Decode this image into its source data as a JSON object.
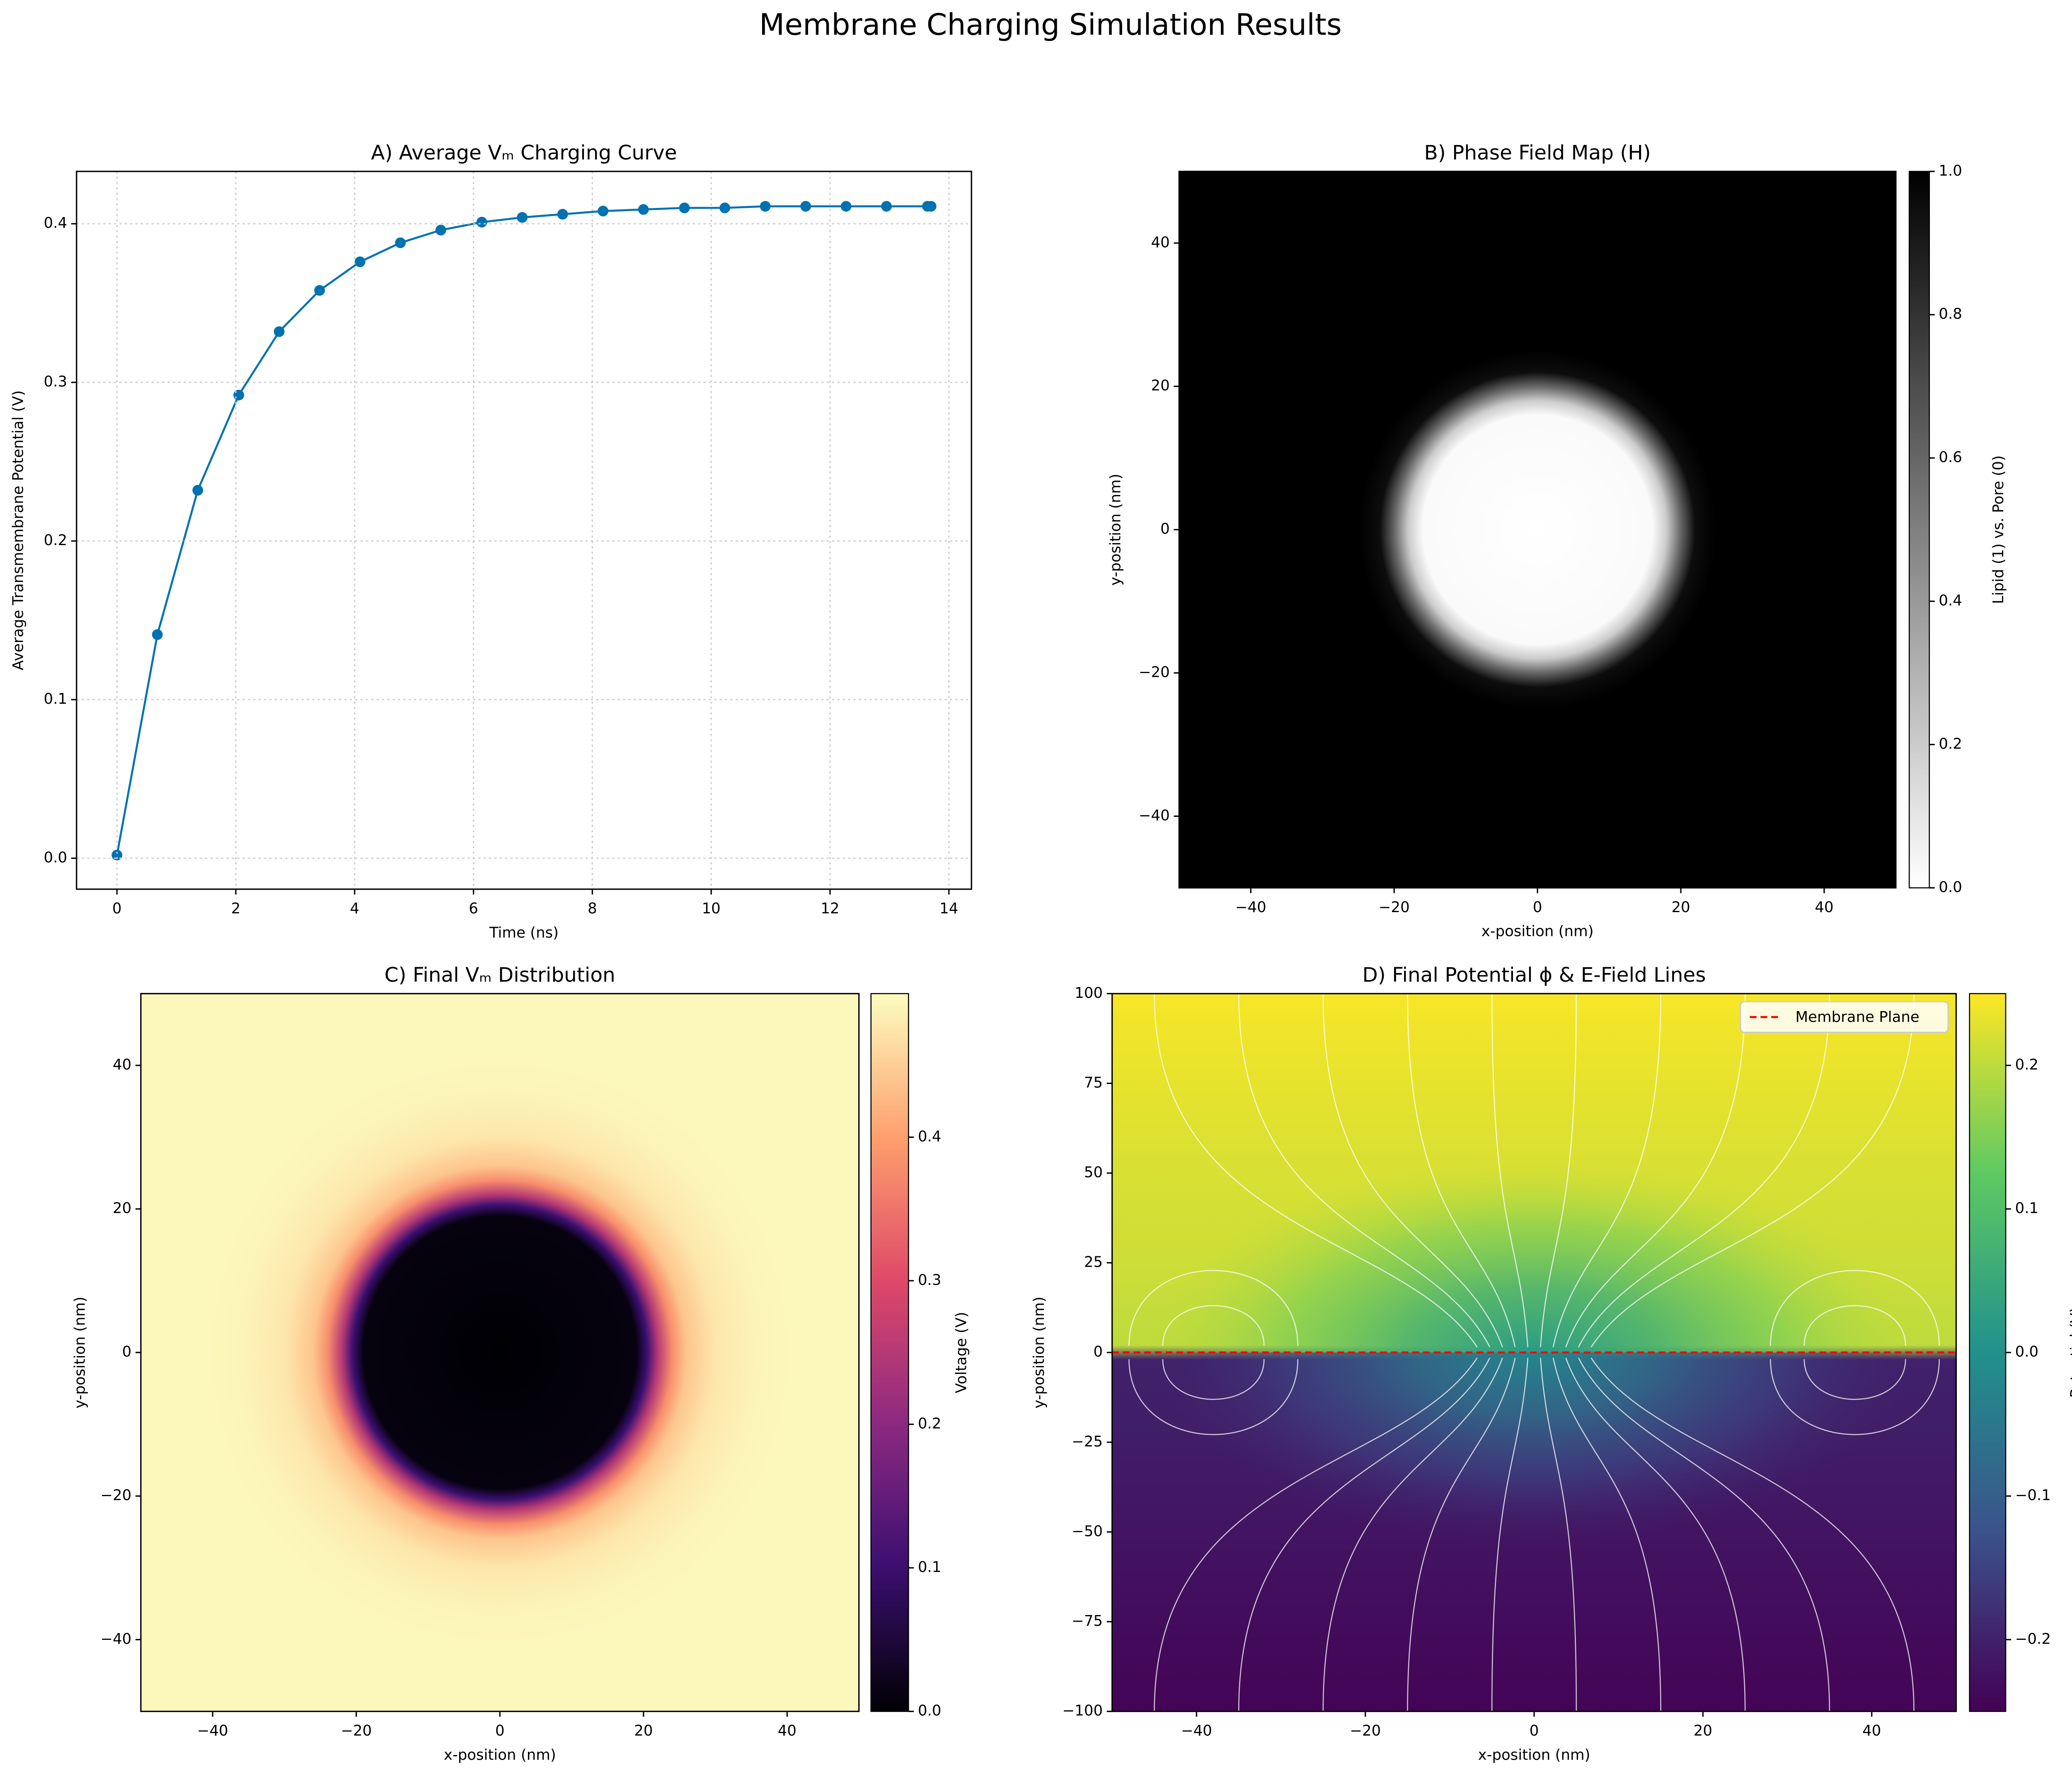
{
  "title": "Membrane Charging Simulation Results",
  "chart_data": [
    {
      "type": "line",
      "title": "A) Average Vₘ Charging Curve",
      "xlabel": "Time (ns)",
      "ylabel": "Average Transmembrane Potential (V)",
      "x": [
        0,
        0.68,
        1.36,
        2.05,
        2.73,
        3.41,
        4.09,
        4.77,
        5.45,
        6.14,
        6.82,
        7.5,
        8.18,
        8.86,
        9.55,
        10.23,
        10.91,
        11.59,
        12.27,
        12.95,
        13.64,
        13.7
      ],
      "values": [
        0.002,
        0.141,
        0.232,
        0.292,
        0.332,
        0.358,
        0.376,
        0.388,
        0.396,
        0.401,
        0.404,
        0.406,
        0.408,
        0.409,
        0.41,
        0.41,
        0.411,
        0.411,
        0.411,
        0.411,
        0.411,
        0.411
      ],
      "color": "#0072b2",
      "grid": true,
      "xlim": [
        -0.68,
        14.38
      ],
      "xticks": [
        0,
        2,
        4,
        6,
        8,
        10,
        12,
        14
      ],
      "ylim": [
        -0.0195,
        0.433
      ],
      "yticks": [
        {
          "value": 0,
          "label": "0.0"
        },
        0.1,
        0.2,
        0.3,
        0.4
      ]
    },
    {
      "type": "heatmap",
      "title": "B) Phase Field Map (H)",
      "xlabel": "x-position (nm)",
      "ylabel": "y-position (nm)",
      "xlim": [
        -50,
        50
      ],
      "xticks": [
        {
          "value": -40,
          "label": "−40"
        },
        {
          "value": -20,
          "label": "−20"
        },
        0,
        20,
        40
      ],
      "ylim": [
        -50,
        50
      ],
      "yticks": [
        {
          "value": -40,
          "label": "−40"
        },
        {
          "value": -20,
          "label": "−20"
        },
        0,
        20,
        40
      ],
      "cmap": "gray_r",
      "clim": [
        0,
        1
      ],
      "colorbar": {
        "label": "Lipid (1) vs. Pore (0)",
        "ticks": [
          {
            "value": 0,
            "label": "0.0"
          },
          0.2,
          0.4,
          0.6,
          0.8,
          {
            "value": 1,
            "label": "1.0"
          }
        ]
      },
      "radial_profile": {
        "r": [
          0,
          16,
          18,
          20,
          22,
          25
        ],
        "values": [
          0,
          0.02,
          0.2,
          0.6,
          0.95,
          1
        ]
      }
    },
    {
      "type": "heatmap",
      "title": "C) Final Vₘ Distribution",
      "xlabel": "x-position (nm)",
      "ylabel": "y-position (nm)",
      "xlim": [
        -50,
        50
      ],
      "xticks": [
        {
          "value": -40,
          "label": "−40"
        },
        {
          "value": -20,
          "label": "−20"
        },
        0,
        20,
        40
      ],
      "ylim": [
        -50,
        50
      ],
      "yticks": [
        {
          "value": -40,
          "label": "−40"
        },
        {
          "value": -20,
          "label": "−20"
        },
        0,
        20,
        40
      ],
      "cmap": "magma",
      "clim": [
        0,
        0.5
      ],
      "colorbar": {
        "label": "Voltage (V)",
        "ticks": [
          {
            "value": 0,
            "label": "0.0"
          },
          0.1,
          0.2,
          0.3,
          0.4
        ]
      },
      "radial_profile": {
        "r": [
          0,
          19,
          20.5,
          22,
          24,
          26,
          30,
          36,
          42
        ],
        "values": [
          0,
          0.01,
          0.1,
          0.25,
          0.38,
          0.44,
          0.475,
          0.49,
          0.495
        ]
      }
    },
    {
      "type": "field",
      "title": "D) Final Potential ϕ & E-Field Lines",
      "xlabel": "x-position (nm)",
      "ylabel": "y-position (nm)",
      "xlim": [
        -50,
        50
      ],
      "xticks": [
        {
          "value": -40,
          "label": "−40"
        },
        {
          "value": -20,
          "label": "−20"
        },
        0,
        20,
        40
      ],
      "ylim": [
        -100,
        100
      ],
      "yticks": [
        {
          "value": -100,
          "label": "−100"
        },
        {
          "value": -75,
          "label": "−75"
        },
        {
          "value": -50,
          "label": "−50"
        },
        {
          "value": -25,
          "label": "−25"
        },
        0,
        25,
        50,
        75,
        100
      ],
      "cmap": "viridis",
      "clim": [
        -0.25,
        0.25
      ],
      "colorbar": {
        "label": "Potential (V)",
        "ticks": [
          {
            "value": -0.2,
            "label": "−0.2"
          },
          {
            "value": -0.1,
            "label": "−0.1"
          },
          {
            "value": 0,
            "label": "0.0"
          },
          0.1,
          0.2
        ]
      },
      "vertical_profile": {
        "y": [
          100,
          60,
          20,
          2,
          -2,
          -20,
          -60,
          -100
        ],
        "values": [
          0.245,
          0.225,
          0.21,
          0.2,
          -0.2,
          -0.205,
          -0.225,
          -0.245
        ]
      },
      "pore_profile": {
        "r": [
          0,
          15,
          30,
          45
        ],
        "upper": [
          0.02,
          0.07,
          0.13,
          0.19
        ],
        "lower": [
          -0.02,
          -0.07,
          -0.13,
          -0.19
        ]
      },
      "membrane_line": {
        "y": 0,
        "name": "Membrane Plane",
        "color": "#ff0000"
      },
      "legend": "upper right"
    }
  ]
}
